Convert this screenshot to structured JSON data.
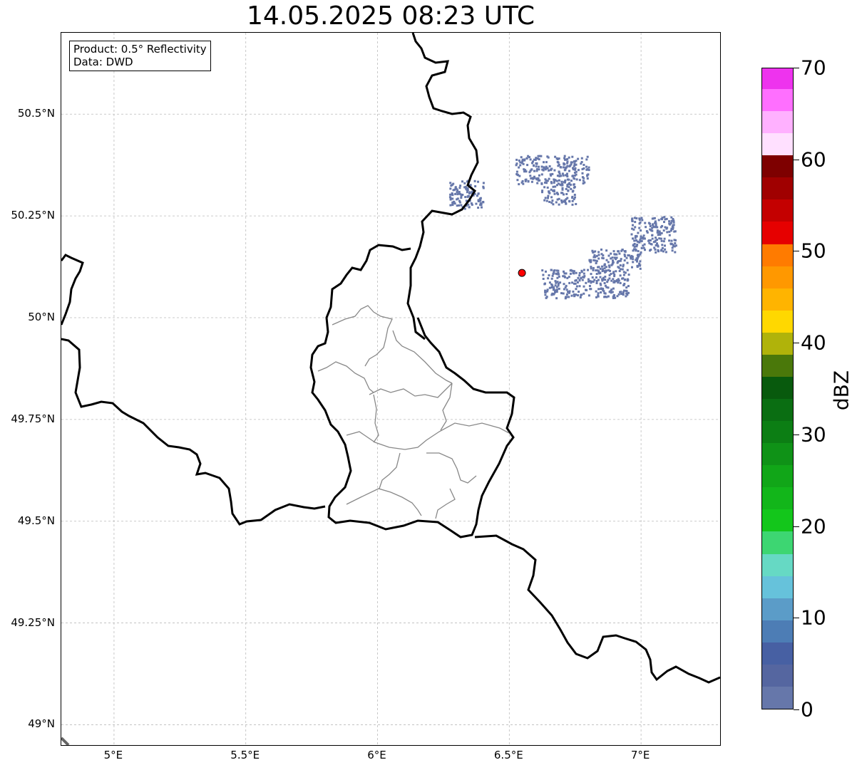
{
  "title": "14.05.2025 08:23 UTC",
  "info_box": {
    "product": "Product: 0.5° Reflectivity",
    "data_source": "Data: DWD"
  },
  "map": {
    "extent": {
      "lon_min": 4.8,
      "lon_max": 7.3,
      "lat_min": 48.95,
      "lat_max": 50.7
    },
    "lat_ticks": [
      {
        "value": 50.5,
        "label": "50.5°N"
      },
      {
        "value": 50.25,
        "label": "50.25°N"
      },
      {
        "value": 50.0,
        "label": "50°N"
      },
      {
        "value": 49.75,
        "label": "49.75°N"
      },
      {
        "value": 49.5,
        "label": "49.5°N"
      },
      {
        "value": 49.25,
        "label": "49.25°N"
      },
      {
        "value": 49.0,
        "label": "49°N"
      }
    ],
    "lon_ticks": [
      {
        "value": 5.0,
        "label": "5°E"
      },
      {
        "value": 5.5,
        "label": "5.5°E"
      },
      {
        "value": 6.0,
        "label": "6°E"
      },
      {
        "value": 6.5,
        "label": "6.5°E"
      },
      {
        "value": 7.0,
        "label": "7°E"
      }
    ],
    "gridlines": true,
    "radar_site": {
      "lon": 6.548,
      "lat": 50.11,
      "color": "#ff0000"
    },
    "echo_color": "#6677aa",
    "echo_areas": [
      {
        "lon_min": 6.52,
        "lon_max": 6.8,
        "lat_min": 50.33,
        "lat_max": 50.4
      },
      {
        "lon_min": 6.62,
        "lon_max": 6.75,
        "lat_min": 50.28,
        "lat_max": 50.33
      },
      {
        "lon_min": 6.96,
        "lon_max": 7.13,
        "lat_min": 50.16,
        "lat_max": 50.25
      },
      {
        "lon_min": 6.8,
        "lon_max": 7.0,
        "lat_min": 50.12,
        "lat_max": 50.17
      },
      {
        "lon_min": 6.62,
        "lon_max": 6.95,
        "lat_min": 50.05,
        "lat_max": 50.12
      },
      {
        "lon_min": 6.27,
        "lon_max": 6.4,
        "lat_min": 50.27,
        "lat_max": 50.34
      }
    ]
  },
  "colorbar": {
    "label": "dBZ",
    "min": 0,
    "max": 70,
    "ticks": [
      {
        "value": 0,
        "label": "0"
      },
      {
        "value": 10,
        "label": "10"
      },
      {
        "value": 20,
        "label": "20"
      },
      {
        "value": 30,
        "label": "30"
      },
      {
        "value": 40,
        "label": "40"
      },
      {
        "value": 50,
        "label": "50"
      },
      {
        "value": 60,
        "label": "60"
      },
      {
        "value": 70,
        "label": "70"
      }
    ],
    "colors": [
      "#6677aa",
      "#5566a0",
      "#4760a3",
      "#4d7db5",
      "#5b9cc8",
      "#66c2db",
      "#66d9c4",
      "#3dd672",
      "#13c61b",
      "#12b61a",
      "#11a618",
      "#0f9217",
      "#0c7e14",
      "#0a6e12",
      "#085a0d",
      "#4a780a",
      "#b0b30a",
      "#ffd800",
      "#ffb400",
      "#ff9800",
      "#ff7b00",
      "#e60000",
      "#c40000",
      "#a00000",
      "#7e0000",
      "#ffe0ff",
      "#ffb1ff",
      "#ff6fff",
      "#ee33ee"
    ]
  }
}
